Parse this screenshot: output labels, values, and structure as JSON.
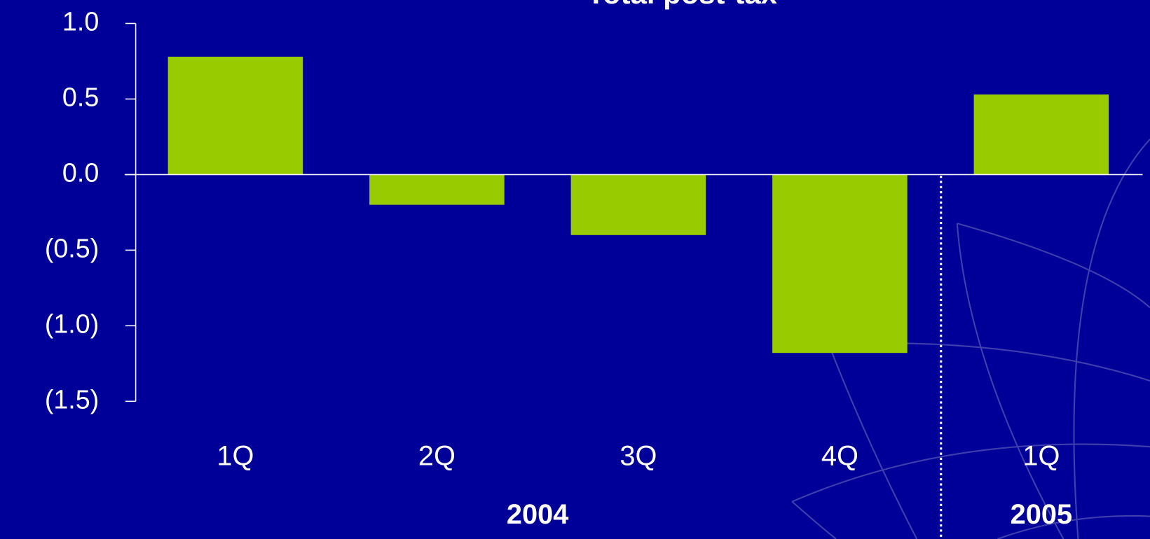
{
  "chart_data": {
    "type": "bar",
    "title": "Total post-tax",
    "categories": [
      "1Q",
      "2Q",
      "3Q",
      "4Q",
      "1Q"
    ],
    "values": [
      0.78,
      -0.2,
      -0.4,
      -1.18,
      0.53
    ],
    "color": "#99cc00",
    "groups": [
      {
        "label": "2004",
        "span": [
          0,
          3
        ]
      },
      {
        "label": "2005",
        "span": [
          4,
          4
        ]
      }
    ],
    "ylim": [
      -1.5,
      1.0
    ],
    "yticks": [
      {
        "value": -1.5,
        "label": "(1.5)"
      },
      {
        "value": -1.0,
        "label": "(1.0)"
      },
      {
        "value": -0.5,
        "label": "(0.5)"
      },
      {
        "value": 0.0,
        "label": "0.0"
      },
      {
        "value": 0.5,
        "label": "0.5"
      },
      {
        "value": 1.0,
        "label": "1.0"
      }
    ]
  }
}
